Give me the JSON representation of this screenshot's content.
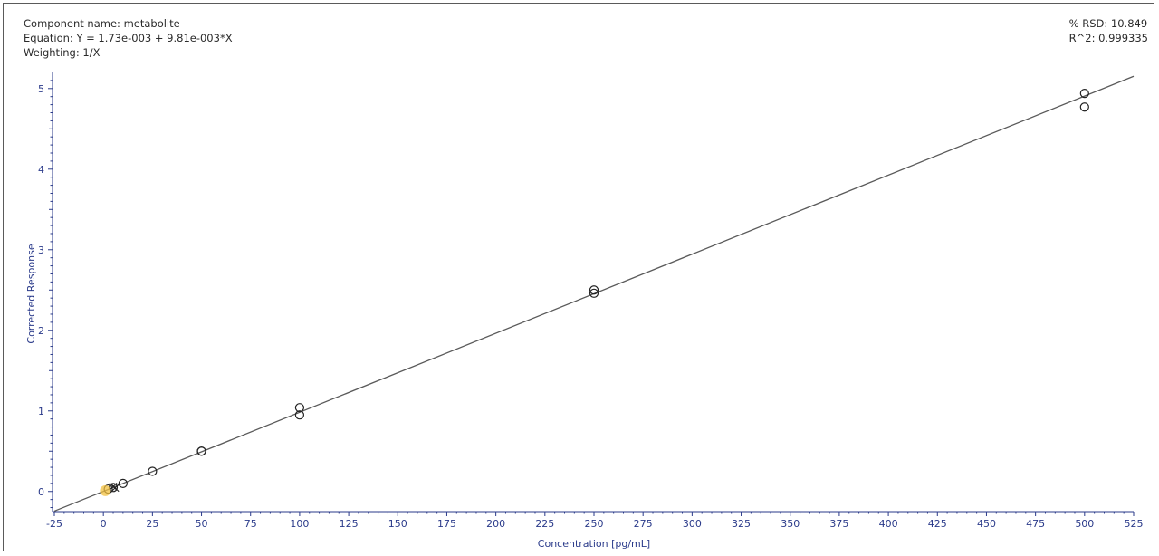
{
  "header": {
    "component_name": "Component name: metabolite",
    "equation": "Equation: Y = 1.73e-003 + 9.81e-003*X",
    "weighting": "Weighting: 1/X",
    "rsd": "% RSD: 10.849",
    "r2": "R^2: 0.999335"
  },
  "colors": {
    "axis": "#2a3a8a",
    "line": "#5a5a5a",
    "marker": "#222222",
    "highlight": "#f2c040"
  },
  "chart_data": {
    "type": "scatter",
    "xlabel": "Concentration [pg/mL]",
    "ylabel": "Corrected Response",
    "xlim": [
      -25,
      525
    ],
    "ylim": [
      -0.25,
      5.2
    ],
    "x_ticks": [
      "-25",
      "0",
      "25",
      "50",
      "75",
      "100",
      "125",
      "150",
      "175",
      "200",
      "225",
      "250",
      "275",
      "300",
      "325",
      "350",
      "375",
      "400",
      "425",
      "450",
      "475",
      "500",
      "525"
    ],
    "y_ticks": [
      "0",
      "1",
      "2",
      "3",
      "4",
      "5"
    ],
    "fit": {
      "intercept": 0.00173,
      "slope": 0.00981
    },
    "series": [
      {
        "points": [
          {
            "x": 500,
            "y": 4.94
          },
          {
            "x": 500,
            "y": 4.77
          },
          {
            "x": 250,
            "y": 2.5
          },
          {
            "x": 250,
            "y": 2.46
          },
          {
            "x": 100,
            "y": 1.04
          },
          {
            "x": 100,
            "y": 0.95
          },
          {
            "x": 50,
            "y": 0.5
          },
          {
            "x": 50,
            "y": 0.5
          },
          {
            "x": 25,
            "y": 0.25
          },
          {
            "x": 10,
            "y": 0.1
          },
          {
            "x": 5,
            "y": 0.05
          },
          {
            "x": 2.5,
            "y": 0.03
          }
        ]
      },
      {
        "marker": "x",
        "points": [
          {
            "x": 5,
            "y": 0.06
          },
          {
            "x": 6,
            "y": 0.045
          }
        ]
      },
      {
        "marker": "highlight",
        "points": [
          {
            "x": 1,
            "y": 0.01
          }
        ]
      }
    ]
  }
}
